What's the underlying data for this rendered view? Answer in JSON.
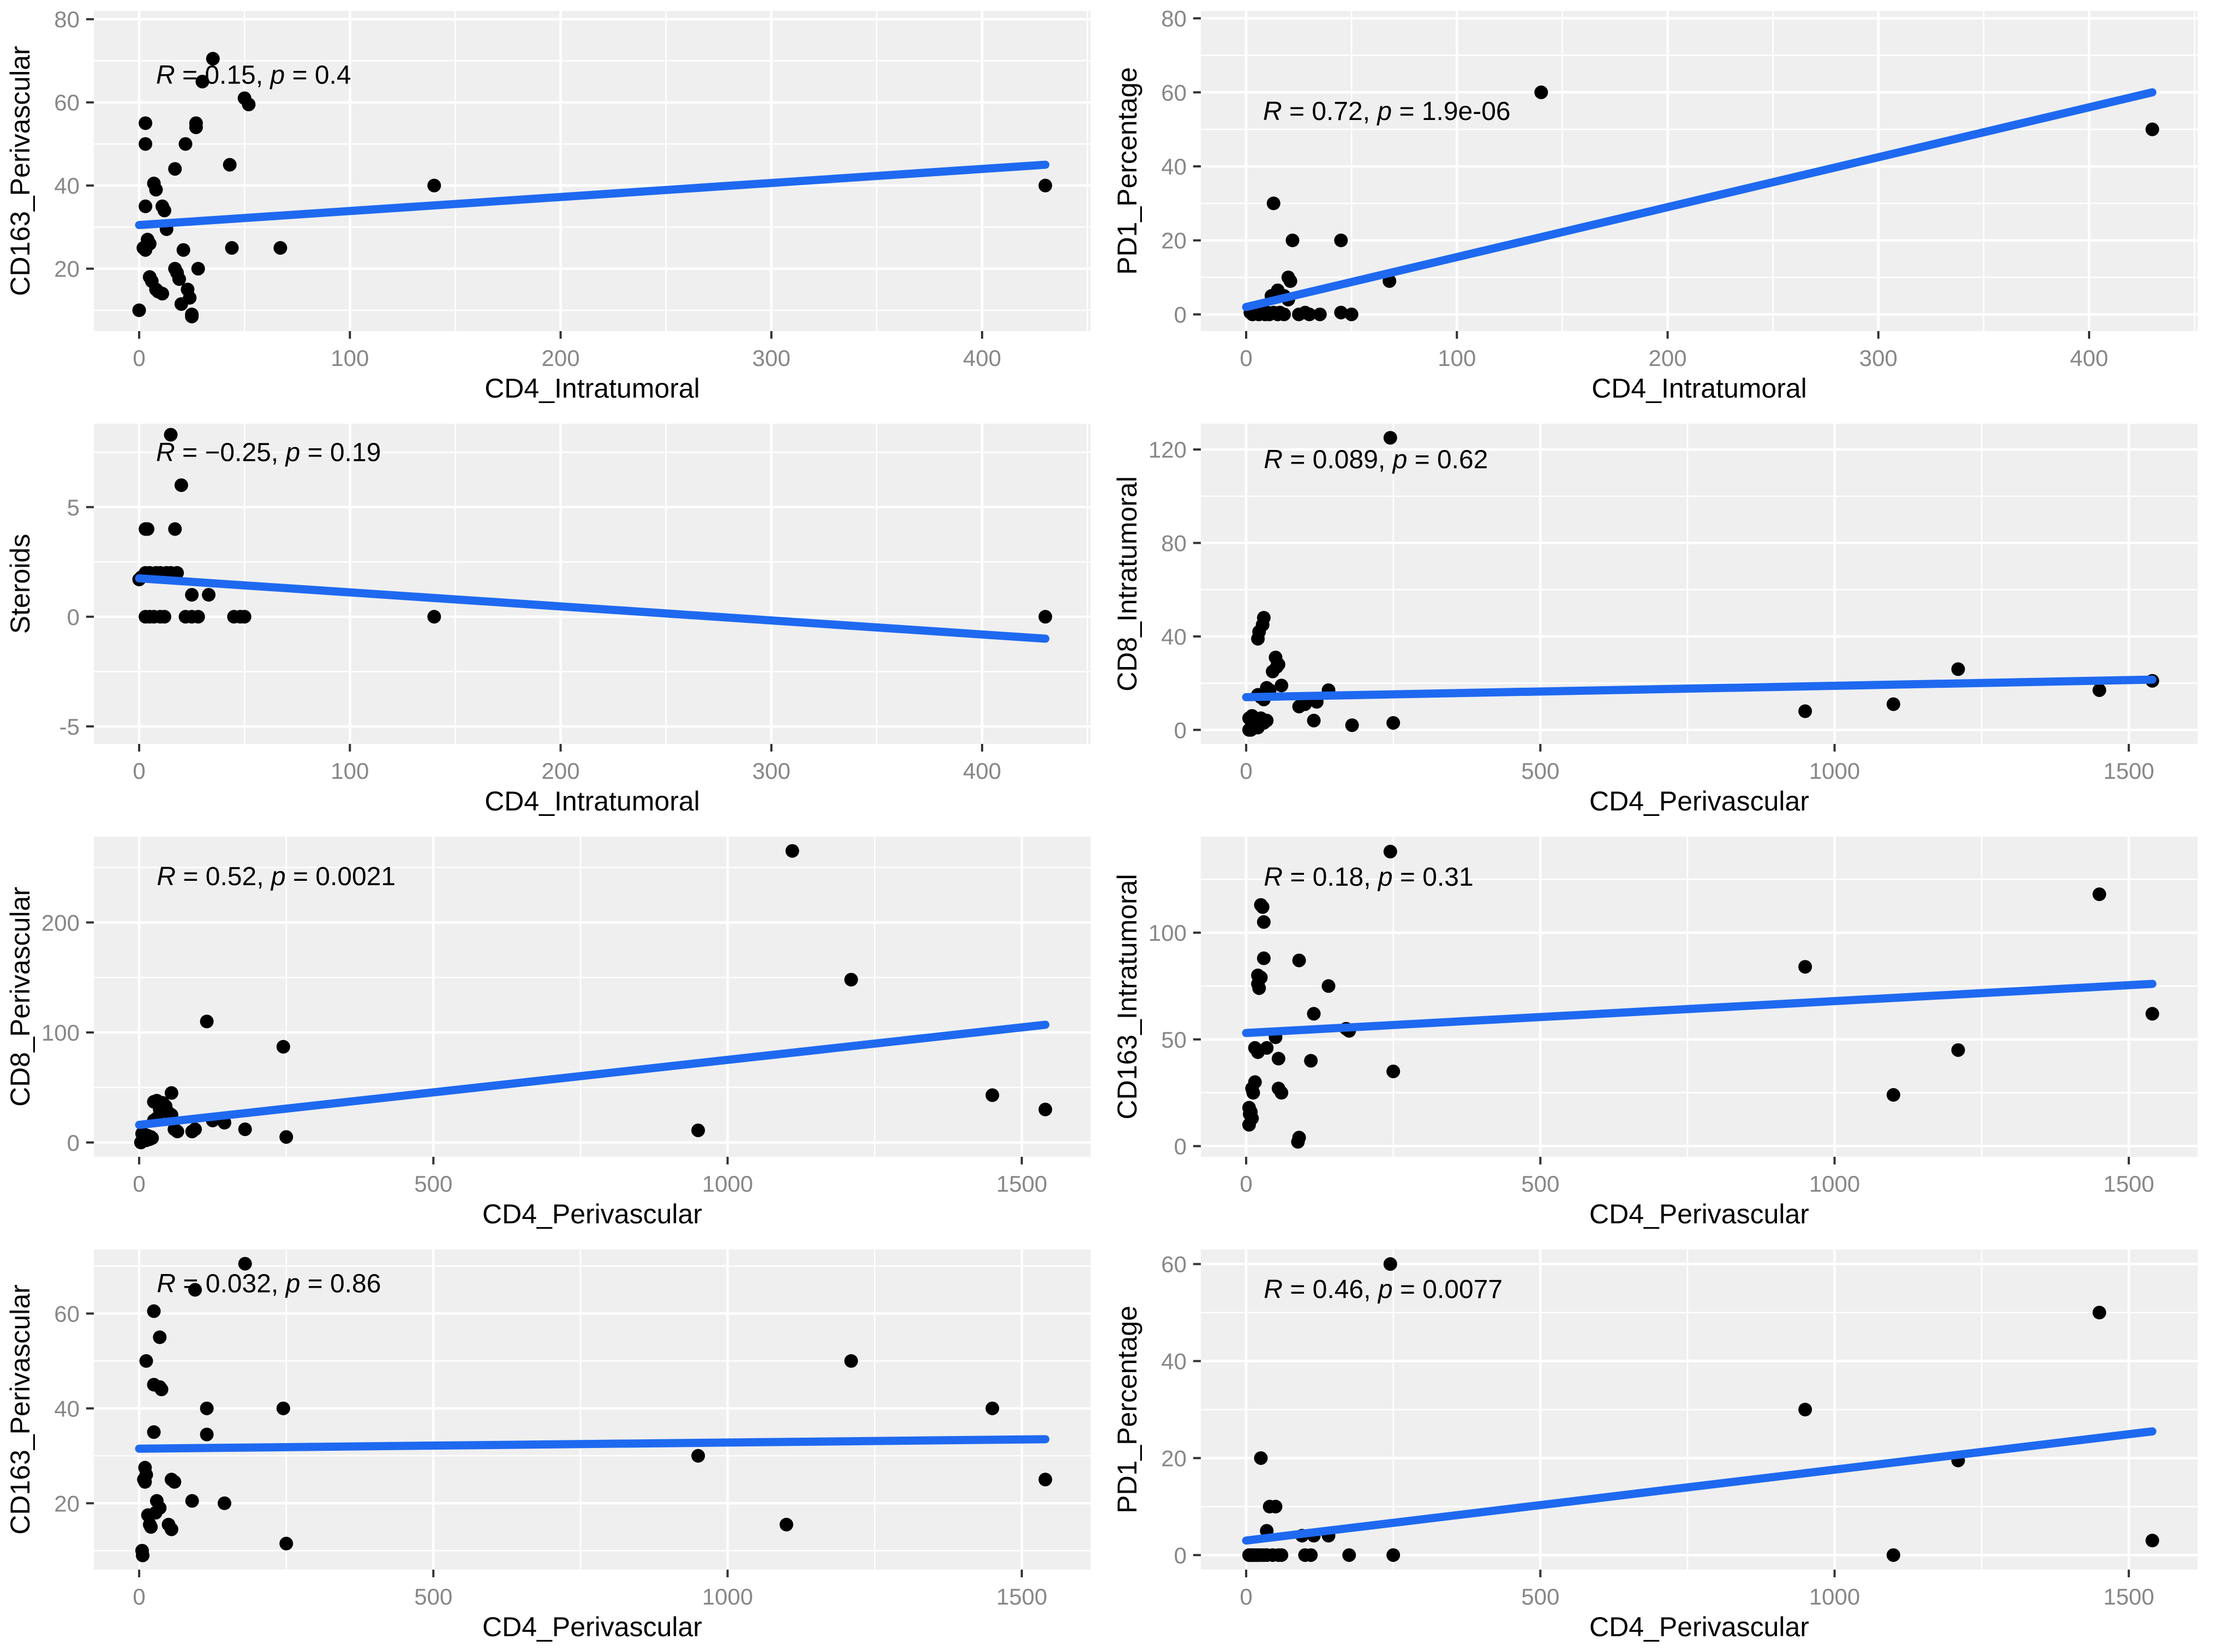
{
  "figure": {
    "background": "#FFFFFF",
    "panel_background": "#EFEFEF",
    "grid_color": "#FFFFFF",
    "point_color": "#000000",
    "line_color": "#1E69F0",
    "tick_label_color": "#878787",
    "tick_mark_color": "#333333",
    "axis_title_color": "#000000",
    "annotation_color": "#000000"
  },
  "chart_data": [
    {
      "type": "scatter",
      "xlabel": "CD4_Intratumoral",
      "ylabel": "CD163_Perivascular",
      "annotation": {
        "segments": [
          {
            "t": "R",
            "i": 1
          },
          {
            "t": " = 0.15, "
          },
          {
            "t": "p",
            "i": 1
          },
          {
            "t": " = 0.4"
          }
        ],
        "x": 8,
        "y": 64.5
      },
      "xlim": [
        -21.5,
        451.5
      ],
      "ylim": [
        5,
        82
      ],
      "x_ticks": [
        0,
        100,
        200,
        300,
        400
      ],
      "y_ticks": [
        20,
        40,
        60,
        80
      ],
      "x_minor": [
        50,
        150,
        250,
        350,
        450
      ],
      "y_minor": [
        10,
        30,
        50,
        70
      ],
      "regression": {
        "x": [
          0,
          430
        ],
        "y": [
          30.5,
          45
        ]
      },
      "points": {
        "x": [
          35,
          30,
          50,
          52,
          3,
          27,
          27,
          3,
          22,
          17,
          43,
          7,
          8,
          140,
          430,
          3,
          11,
          12,
          13,
          4,
          5,
          2,
          3,
          21,
          44,
          67,
          17,
          18,
          19,
          28,
          5,
          6,
          8,
          9,
          11,
          23,
          24,
          20,
          0,
          25,
          25
        ],
        "y": [
          70.5,
          65,
          61,
          59.5,
          55,
          55,
          54,
          50,
          50,
          44,
          45,
          40.5,
          39,
          40,
          40,
          35,
          35,
          34,
          29.5,
          27,
          26,
          25,
          24.5,
          24.5,
          25,
          25,
          20,
          19,
          17.5,
          20,
          18,
          17,
          15,
          14.5,
          14,
          15,
          13,
          11.5,
          10,
          9,
          8.5
        ]
      }
    },
    {
      "type": "scatter",
      "xlabel": "CD4_Intratumoral",
      "ylabel": "PD1_Percentage",
      "annotation": {
        "segments": [
          {
            "t": "R",
            "i": 1
          },
          {
            "t": " = 0.72, "
          },
          {
            "t": "p",
            "i": 1
          },
          {
            "t": " = 1.9e-06"
          }
        ],
        "x": 8,
        "y": 52.5
      },
      "xlim": [
        -21.5,
        451.5
      ],
      "ylim": [
        -4.5,
        82
      ],
      "x_ticks": [
        0,
        100,
        200,
        300,
        400
      ],
      "y_ticks": [
        0,
        20,
        40,
        60,
        80
      ],
      "x_minor": [
        50,
        150,
        250,
        350,
        450
      ],
      "y_minor": [
        10,
        30,
        50,
        70
      ],
      "regression": {
        "x": [
          0,
          430
        ],
        "y": [
          2,
          60
        ]
      },
      "points": {
        "x": [
          140,
          430,
          13,
          22,
          45,
          20,
          21,
          68,
          12,
          18,
          20,
          15,
          2,
          3,
          5,
          6,
          8,
          9,
          10,
          11,
          13,
          15,
          16,
          18,
          25,
          28,
          30,
          35,
          45,
          50
        ],
        "y": [
          60,
          50,
          30,
          20,
          20,
          10,
          9,
          9,
          5,
          5,
          4,
          6.5,
          0.5,
          0,
          0.5,
          0,
          0.5,
          0,
          0.5,
          0,
          0.5,
          0,
          0.5,
          0,
          0,
          0.5,
          0,
          0,
          0.5,
          0
        ]
      }
    },
    {
      "type": "scatter",
      "xlabel": "CD4_Intratumoral",
      "ylabel": "Steroids",
      "annotation": {
        "segments": [
          {
            "t": "R",
            "i": 1
          },
          {
            "t": " = −0.25, "
          },
          {
            "t": "p",
            "i": 1
          },
          {
            "t": " = 0.19"
          }
        ],
        "x": 8,
        "y": 7.1
      },
      "xlim": [
        -21.5,
        451.5
      ],
      "ylim": [
        -5.8,
        8.8
      ],
      "x_ticks": [
        0,
        100,
        200,
        300,
        400
      ],
      "y_ticks": [
        -5,
        0,
        5
      ],
      "x_minor": [
        50,
        150,
        250,
        350,
        450
      ],
      "y_minor": [
        -2.5,
        2.5,
        7.5
      ],
      "regression": {
        "x": [
          0,
          430
        ],
        "y": [
          1.75,
          -1.0
        ]
      },
      "points": {
        "x": [
          15,
          20,
          3,
          4,
          17,
          0,
          1,
          3,
          5,
          8,
          10,
          13,
          15,
          18,
          25,
          33,
          3,
          5,
          7,
          10,
          12,
          22,
          25,
          28,
          45,
          48,
          50,
          140,
          430
        ],
        "y": [
          8.3,
          6,
          4,
          4,
          4,
          1.7,
          1.8,
          2,
          2,
          2,
          2,
          2,
          2,
          2,
          1,
          1,
          0,
          0,
          0,
          0,
          0,
          0,
          0,
          0,
          0,
          0,
          0,
          0,
          0
        ]
      }
    },
    {
      "type": "scatter",
      "xlabel": "CD4_Perivascular",
      "ylabel": "CD8_Intratumoral",
      "annotation": {
        "segments": [
          {
            "t": "R",
            "i": 1
          },
          {
            "t": " = 0.089, "
          },
          {
            "t": "p",
            "i": 1
          },
          {
            "t": " = 0.62"
          }
        ],
        "x": 30,
        "y": 112
      },
      "xlim": [
        -77,
        1617
      ],
      "ylim": [
        -6,
        131
      ],
      "x_ticks": [
        0,
        500,
        1000,
        1500
      ],
      "y_ticks": [
        0,
        40,
        80,
        120
      ],
      "x_minor": [
        250,
        750,
        1250
      ],
      "y_minor": [
        20,
        60,
        100
      ],
      "regression": {
        "x": [
          0,
          1540
        ],
        "y": [
          14,
          21.5
        ]
      },
      "points": {
        "x": [
          245,
          30,
          28,
          22,
          20,
          50,
          55,
          52,
          45,
          60,
          35,
          40,
          140,
          20,
          25,
          30,
          120,
          100,
          90,
          950,
          1100,
          1210,
          1450,
          1540,
          5,
          10,
          15,
          25,
          10,
          15,
          20,
          5,
          8,
          30,
          35,
          115,
          180,
          250
        ],
        "y": [
          125,
          48,
          45,
          42,
          39,
          31,
          28,
          27,
          25,
          19,
          18,
          17,
          17,
          15,
          14,
          13,
          12,
          11,
          10,
          8,
          11,
          26,
          17,
          21,
          5,
          6,
          5,
          5,
          2,
          1,
          1,
          0,
          0,
          3,
          4,
          4,
          2,
          3
        ]
      }
    },
    {
      "type": "scatter",
      "xlabel": "CD4_Perivascular",
      "ylabel": "CD8_Perivascular",
      "annotation": {
        "segments": [
          {
            "t": "R",
            "i": 1
          },
          {
            "t": " = 0.52, "
          },
          {
            "t": "p",
            "i": 1
          },
          {
            "t": " = 0.0021"
          }
        ],
        "x": 30,
        "y": 234
      },
      "xlim": [
        -77,
        1617
      ],
      "ylim": [
        -13,
        278
      ],
      "x_ticks": [
        0,
        500,
        1000,
        1500
      ],
      "y_ticks": [
        0,
        100,
        200
      ],
      "x_minor": [
        250,
        750,
        1250
      ],
      "y_minor": [
        50,
        150,
        250
      ],
      "regression": {
        "x": [
          0,
          1540
        ],
        "y": [
          16,
          107
        ]
      },
      "points": {
        "x": [
          1110,
          1210,
          115,
          245,
          55,
          30,
          25,
          40,
          45,
          35,
          50,
          55,
          30,
          25,
          125,
          145,
          180,
          95,
          90,
          60,
          65,
          5,
          10,
          15,
          20,
          10,
          8,
          12,
          5,
          3,
          18,
          22,
          250,
          950,
          1450,
          1540
        ],
        "y": [
          265,
          148,
          110,
          87,
          45,
          38,
          37,
          36,
          33,
          30,
          27,
          25,
          22,
          20,
          20,
          18,
          12,
          12,
          10,
          12,
          10,
          8,
          7,
          6,
          5,
          4,
          3,
          2,
          1,
          0,
          3,
          4,
          5,
          11,
          43,
          30
        ]
      }
    },
    {
      "type": "scatter",
      "xlabel": "CD4_Perivascular",
      "ylabel": "CD163_Intratumoral",
      "annotation": {
        "segments": [
          {
            "t": "R",
            "i": 1
          },
          {
            "t": " = 0.18, "
          },
          {
            "t": "p",
            "i": 1
          },
          {
            "t": " = 0.31"
          }
        ],
        "x": 30,
        "y": 122
      },
      "xlim": [
        -77,
        1617
      ],
      "ylim": [
        -5,
        145
      ],
      "x_ticks": [
        0,
        500,
        1000,
        1500
      ],
      "y_ticks": [
        0,
        50,
        100
      ],
      "x_minor": [
        250,
        750,
        1250
      ],
      "y_minor": [
        25,
        75,
        125
      ],
      "regression": {
        "x": [
          0,
          1540
        ],
        "y": [
          53,
          76
        ]
      },
      "points": {
        "x": [
          245,
          1450,
          25,
          28,
          30,
          30,
          90,
          950,
          20,
          25,
          20,
          22,
          140,
          115,
          170,
          175,
          50,
          15,
          35,
          20,
          55,
          110,
          250,
          1210,
          1540,
          15,
          10,
          12,
          55,
          60,
          1100,
          5,
          8,
          6,
          10,
          5,
          90,
          88
        ],
        "y": [
          138,
          118,
          113,
          112,
          105,
          88,
          87,
          84,
          80,
          79,
          76,
          74,
          75,
          62,
          55,
          54,
          51,
          46,
          46,
          44,
          41,
          40,
          35,
          45,
          62,
          30,
          27,
          25,
          27,
          25,
          24,
          18,
          16,
          15,
          13,
          10,
          4,
          2
        ]
      }
    },
    {
      "type": "scatter",
      "xlabel": "CD4_Perivascular",
      "ylabel": "CD163_Perivascular",
      "annotation": {
        "segments": [
          {
            "t": "R",
            "i": 1
          },
          {
            "t": " = 0.032, "
          },
          {
            "t": "p",
            "i": 1
          },
          {
            "t": " = 0.86"
          }
        ],
        "x": 30,
        "y": 64.5
      },
      "xlim": [
        -77,
        1617
      ],
      "ylim": [
        6,
        73.5
      ],
      "x_ticks": [
        0,
        500,
        1000,
        1500
      ],
      "y_ticks": [
        20,
        40,
        60
      ],
      "x_minor": [
        250,
        750,
        1250
      ],
      "y_minor": [
        10,
        30,
        50,
        70
      ],
      "regression": {
        "x": [
          0,
          1540
        ],
        "y": [
          31.5,
          33.5
        ]
      },
      "points": {
        "x": [
          180,
          95,
          25,
          35,
          12,
          25,
          35,
          38,
          115,
          245,
          1450,
          1210,
          25,
          115,
          950,
          10,
          12,
          8,
          10,
          55,
          60,
          1540,
          30,
          35,
          90,
          145,
          28,
          15,
          18,
          20,
          50,
          55,
          1100,
          250,
          5,
          6
        ],
        "y": [
          70.5,
          65,
          60.5,
          55,
          50,
          45,
          44.5,
          44,
          40,
          40,
          40,
          50,
          35,
          34.5,
          30,
          27.5,
          26,
          25,
          24.5,
          25,
          24.5,
          25,
          20.5,
          19,
          20.5,
          20,
          18,
          17.5,
          15.5,
          15,
          15.5,
          14.5,
          15.5,
          11.5,
          10,
          9
        ]
      }
    },
    {
      "type": "scatter",
      "xlabel": "CD4_Perivascular",
      "ylabel": "PD1_Percentage",
      "annotation": {
        "segments": [
          {
            "t": "R",
            "i": 1
          },
          {
            "t": " = 0.46, "
          },
          {
            "t": "p",
            "i": 1
          },
          {
            "t": " = 0.0077"
          }
        ],
        "x": 30,
        "y": 53
      },
      "xlim": [
        -77,
        1617
      ],
      "ylim": [
        -3,
        63
      ],
      "x_ticks": [
        0,
        500,
        1000,
        1500
      ],
      "y_ticks": [
        0,
        20,
        40,
        60
      ],
      "x_minor": [
        250,
        750,
        1250
      ],
      "y_minor": [
        10,
        30,
        50
      ],
      "regression": {
        "x": [
          0,
          1540
        ],
        "y": [
          3,
          25.5
        ]
      },
      "points": {
        "x": [
          245,
          1450,
          950,
          25,
          1210,
          40,
          50,
          35,
          95,
          115,
          140,
          5,
          8,
          10,
          12,
          15,
          18,
          20,
          25,
          30,
          35,
          45,
          55,
          60,
          100,
          110,
          175,
          250,
          1100,
          1540
        ],
        "y": [
          60,
          50,
          30,
          20,
          19.5,
          10,
          10,
          5,
          4,
          4,
          4,
          0,
          0,
          0,
          0,
          0,
          0,
          0,
          0,
          0,
          0,
          0,
          0,
          0,
          0,
          0,
          0,
          0,
          0,
          3
        ]
      }
    }
  ]
}
